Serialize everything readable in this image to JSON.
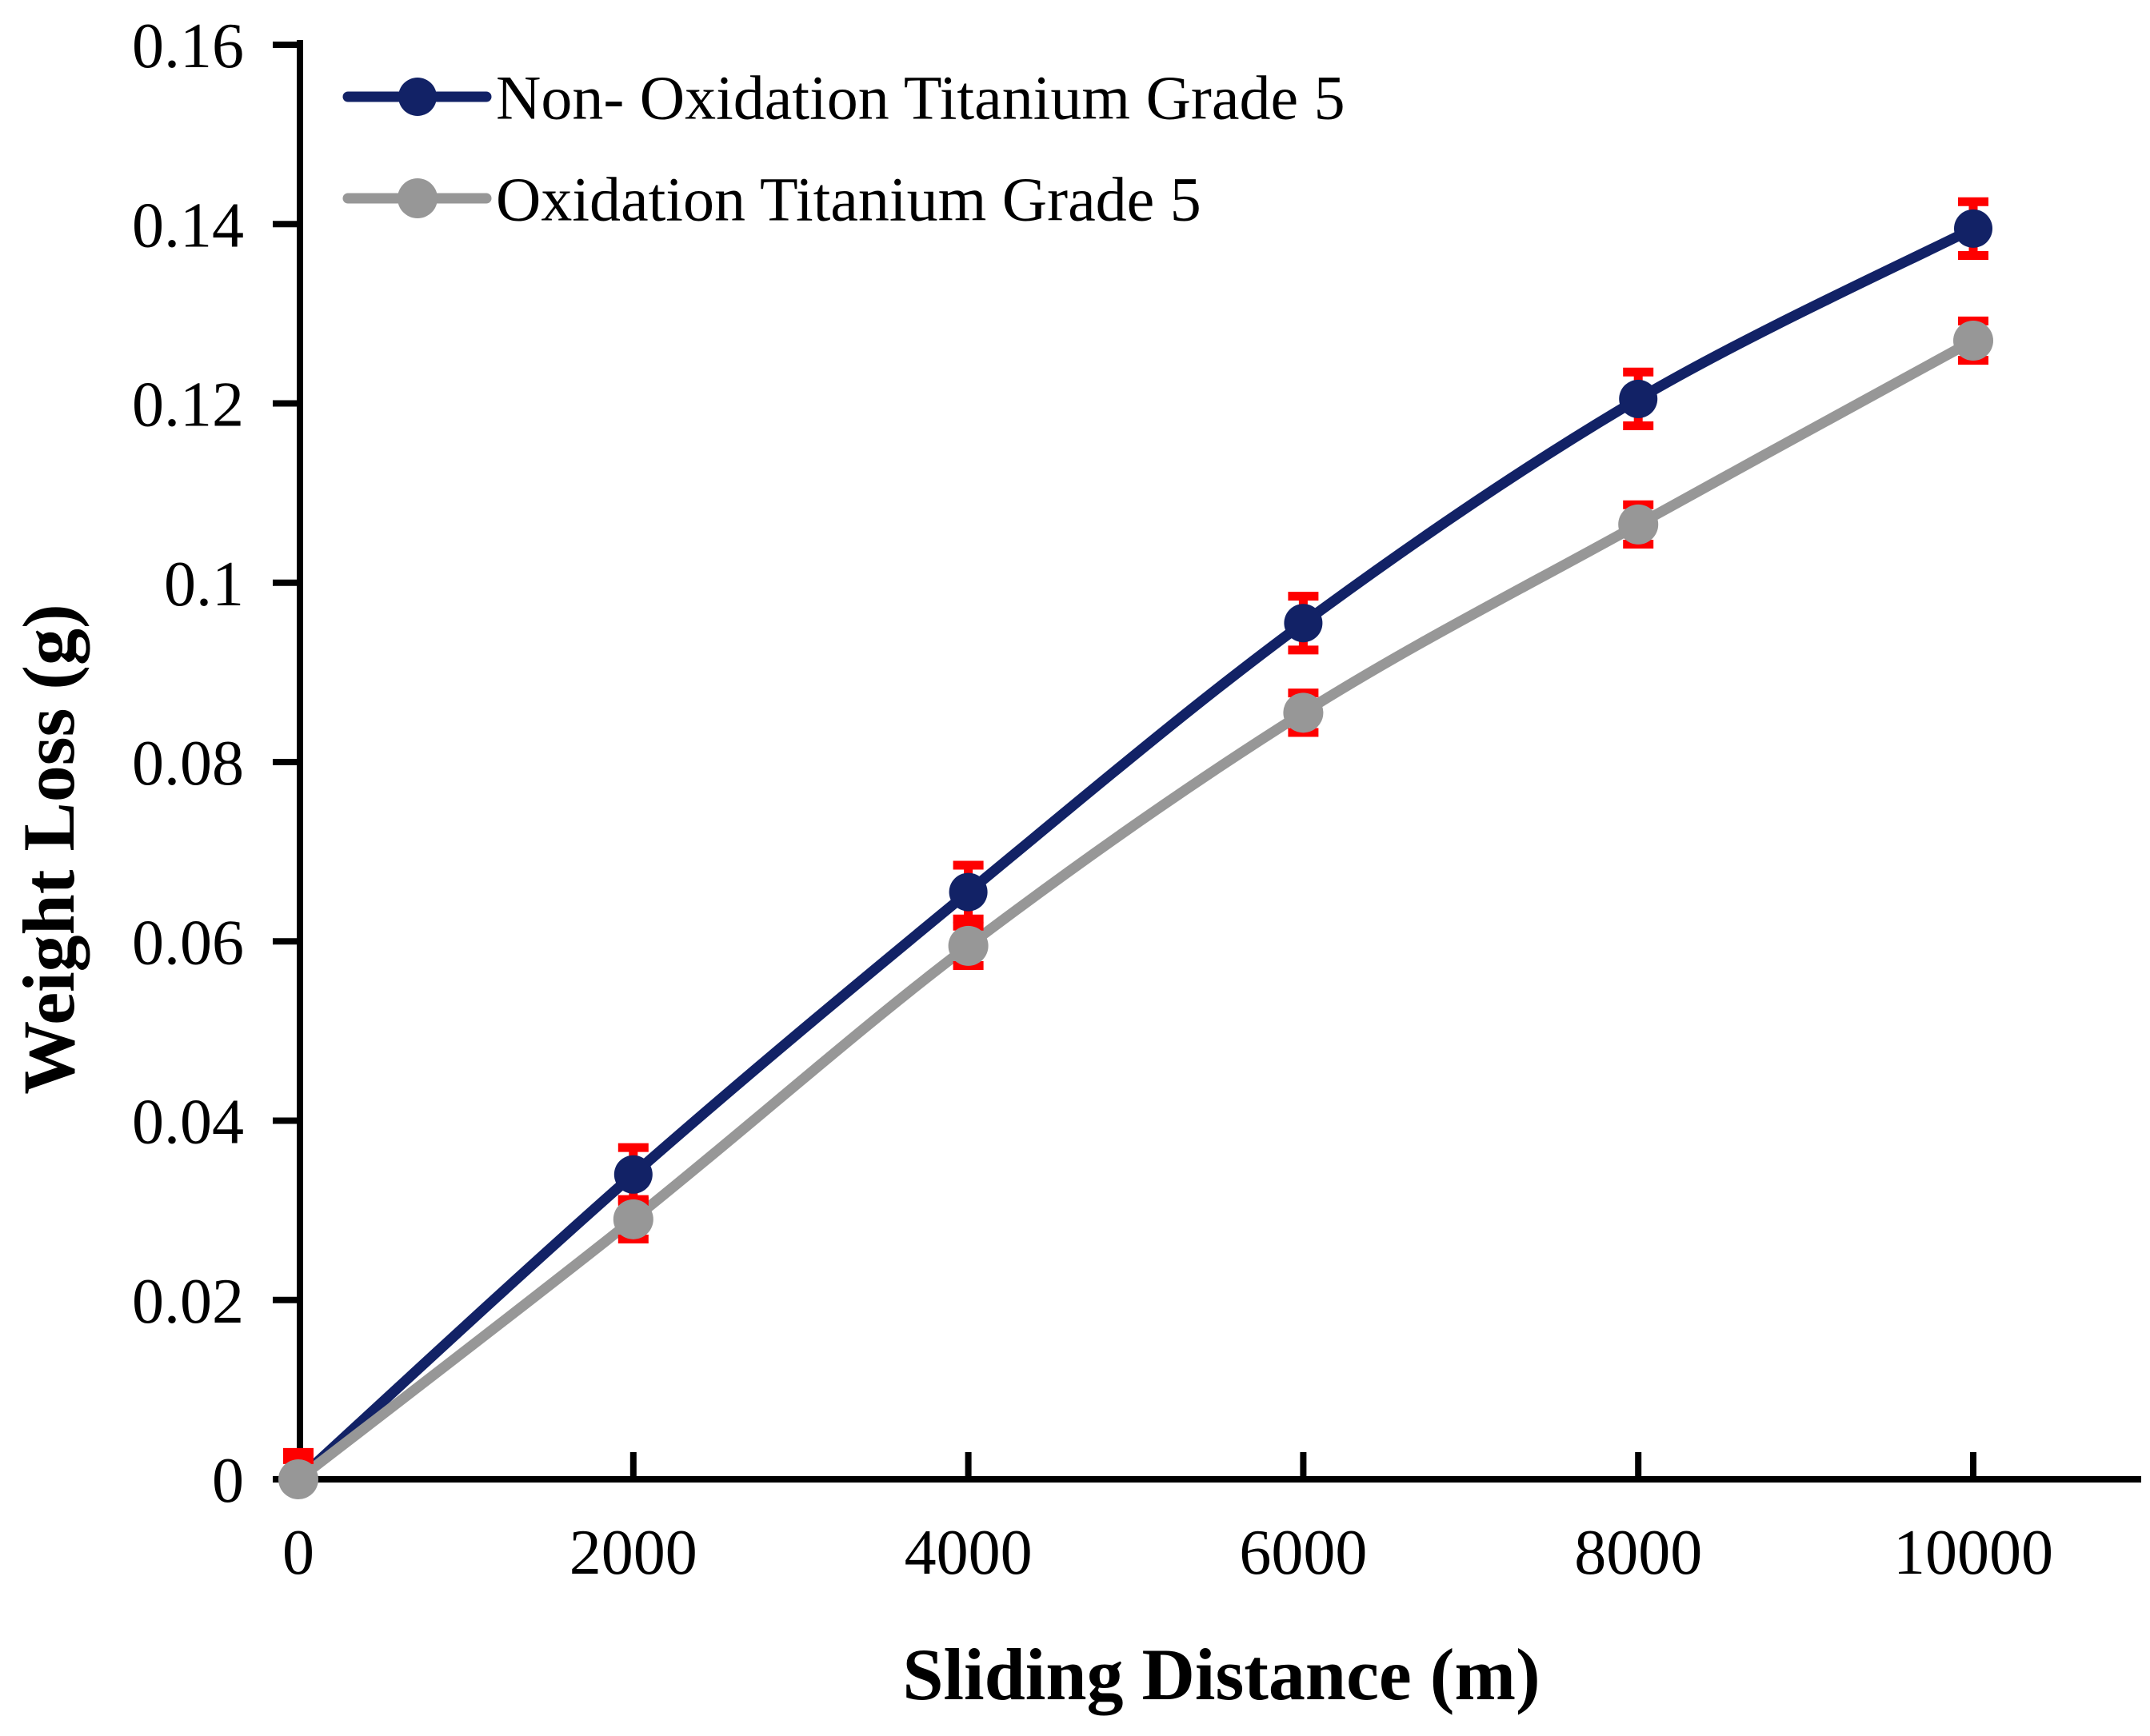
{
  "chart_data": {
    "type": "line",
    "title": "",
    "xlabel": "Sliding Distance (m)",
    "ylabel": "Weight Loss (g)",
    "x": [
      0,
      2000,
      4000,
      6000,
      8000,
      10000
    ],
    "series": [
      {
        "name": "Non- Oxidation Titanium Grade 5",
        "color": "#122266",
        "values": [
          0,
          0.034,
          0.0655,
          0.0955,
          0.1205,
          0.1395
        ],
        "error": 0.003,
        "marker": "circle"
      },
      {
        "name": "Oxidation Titanium Grade 5",
        "color": "#979797",
        "values": [
          0,
          0.029,
          0.0595,
          0.0855,
          0.1065,
          0.127
        ],
        "error": 0.0022,
        "marker": "circle"
      }
    ],
    "error_bar_color": "#fe0000",
    "axis_color": "#000000",
    "xlim": [
      0,
      11000
    ],
    "ylim": [
      0,
      0.16
    ],
    "xticks": [
      0,
      2000,
      4000,
      6000,
      8000,
      10000
    ],
    "xtick_labels": [
      "0",
      "2000",
      "4000",
      "6000",
      "8000",
      "10000"
    ],
    "yticks": [
      0,
      0.02,
      0.04,
      0.06,
      0.08,
      0.1,
      0.12,
      0.14,
      0.16
    ],
    "ytick_labels": [
      "0",
      "0.02",
      "0.04",
      "0.06",
      "0.08",
      "0.1",
      "0.12",
      "0.14",
      "0.16"
    ],
    "grid": false,
    "legend_position": "top-left",
    "line_style": "smooth"
  }
}
